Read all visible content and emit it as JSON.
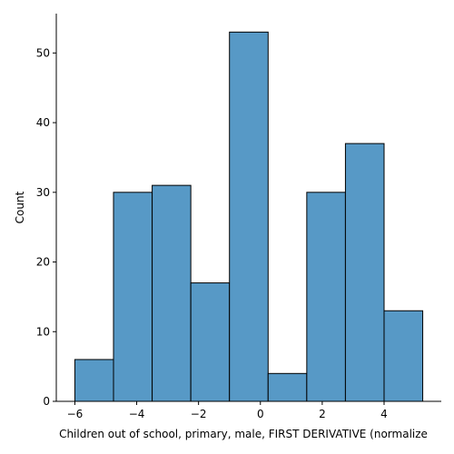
{
  "chart_data": {
    "type": "bar",
    "subtype": "histogram",
    "title": "",
    "xlabel": "Children out of school, primary, male, FIRST DERIVATIVE (normalize",
    "ylabel": "Count",
    "bin_edges": [
      -6.0,
      -4.75,
      -3.5,
      -2.25,
      -1.0,
      0.25,
      1.5,
      2.75,
      4.0,
      5.25
    ],
    "values": [
      6,
      30,
      31,
      17,
      53,
      4,
      30,
      37,
      13
    ],
    "xlim": [
      -6.6,
      5.85
    ],
    "ylim": [
      0,
      55.65
    ],
    "xticks": [
      -6,
      -4,
      -2,
      0,
      2,
      4
    ],
    "xtick_labels": [
      "−6",
      "−4",
      "−2",
      "0",
      "2",
      "4"
    ],
    "yticks": [
      0,
      10,
      20,
      30,
      40,
      50
    ],
    "ytick_labels": [
      "0",
      "10",
      "20",
      "30",
      "40",
      "50"
    ],
    "grid": false,
    "legend": "none",
    "bar_color": "#5799c6",
    "edge_color": "#000000"
  }
}
